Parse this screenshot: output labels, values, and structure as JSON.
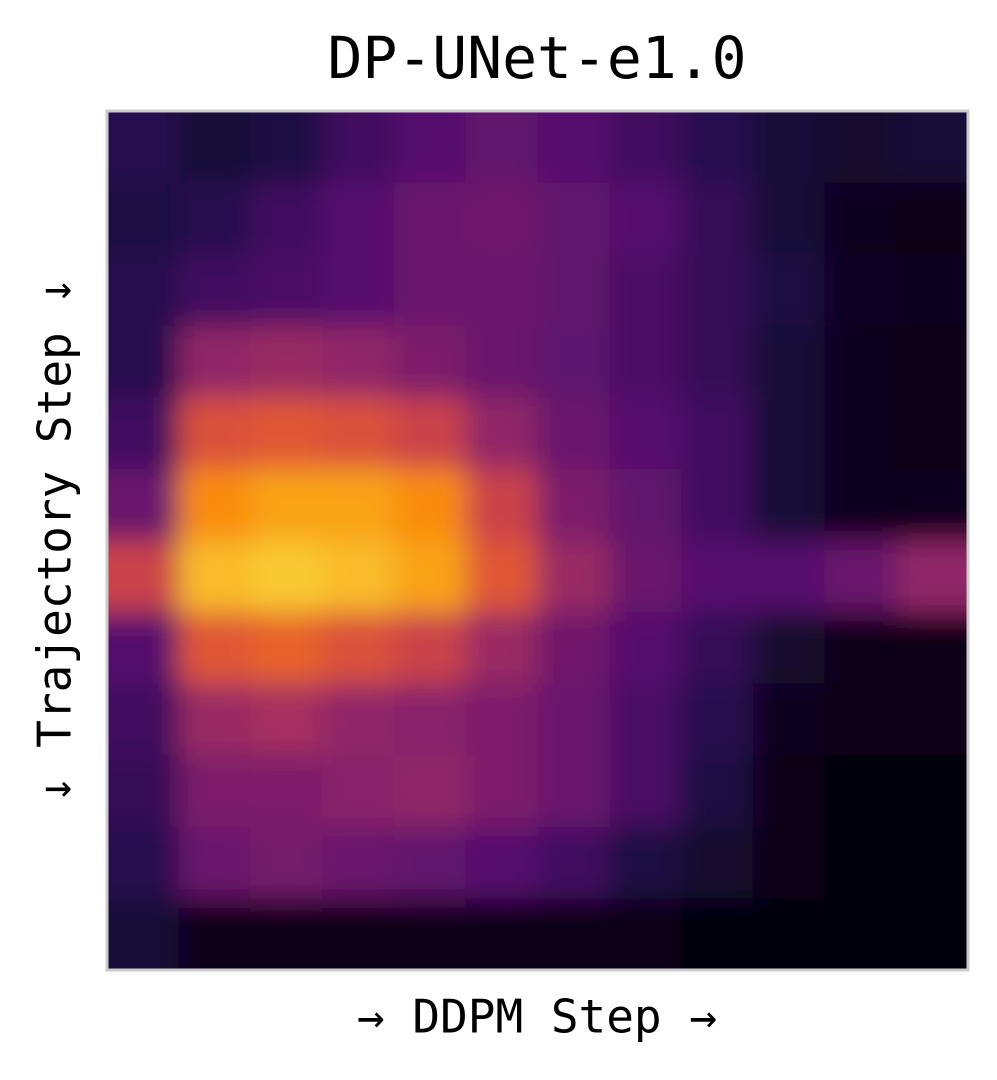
{
  "chart_data": {
    "type": "heatmap",
    "title": "DP-UNet-e1.0",
    "x_label": "→ DDPM Step →",
    "y_label": "↓ Trajectory Step ↓",
    "colormap": "inferno",
    "z": [
      [
        0.15,
        0.1,
        0.12,
        0.2,
        0.25,
        0.28,
        0.25,
        0.2,
        0.15,
        0.1,
        0.08,
        0.1
      ],
      [
        0.12,
        0.15,
        0.2,
        0.25,
        0.3,
        0.32,
        0.28,
        0.25,
        0.18,
        0.1,
        0.05,
        0.04
      ],
      [
        0.15,
        0.2,
        0.22,
        0.25,
        0.3,
        0.3,
        0.28,
        0.22,
        0.18,
        0.12,
        0.06,
        0.05
      ],
      [
        0.15,
        0.4,
        0.42,
        0.4,
        0.35,
        0.3,
        0.27,
        0.22,
        0.18,
        0.1,
        0.05,
        0.04
      ],
      [
        0.2,
        0.6,
        0.62,
        0.6,
        0.55,
        0.4,
        0.3,
        0.25,
        0.2,
        0.1,
        0.05,
        0.04
      ],
      [
        0.3,
        0.75,
        0.8,
        0.8,
        0.75,
        0.55,
        0.35,
        0.28,
        0.2,
        0.1,
        0.05,
        0.05
      ],
      [
        0.55,
        0.85,
        0.88,
        0.85,
        0.8,
        0.62,
        0.42,
        0.3,
        0.25,
        0.25,
        0.3,
        0.4
      ],
      [
        0.25,
        0.62,
        0.65,
        0.6,
        0.55,
        0.42,
        0.32,
        0.25,
        0.18,
        0.08,
        0.04,
        0.03
      ],
      [
        0.2,
        0.42,
        0.45,
        0.4,
        0.38,
        0.35,
        0.3,
        0.22,
        0.15,
        0.05,
        0.03,
        0.03
      ],
      [
        0.18,
        0.35,
        0.35,
        0.38,
        0.4,
        0.35,
        0.3,
        0.22,
        0.12,
        0.04,
        0.02,
        0.02
      ],
      [
        0.15,
        0.3,
        0.33,
        0.3,
        0.28,
        0.25,
        0.2,
        0.12,
        0.08,
        0.03,
        0.02,
        0.02
      ],
      [
        0.1,
        0.04,
        0.03,
        0.03,
        0.03,
        0.03,
        0.03,
        0.03,
        0.02,
        0.02,
        0.02,
        0.02
      ]
    ]
  }
}
